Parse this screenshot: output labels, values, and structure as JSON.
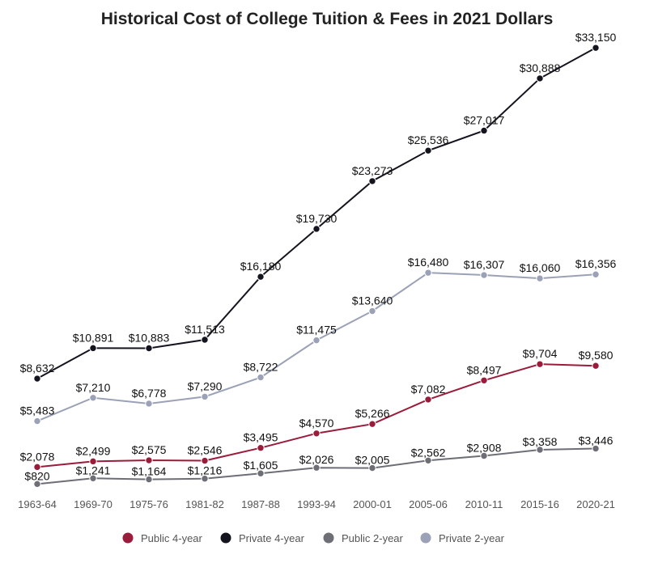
{
  "chart_data": {
    "type": "line",
    "title": "Historical Cost of College Tuition & Fees in 2021 Dollars",
    "xlabel": "",
    "ylabel": "",
    "ylim": [
      0,
      34000
    ],
    "grid": false,
    "legend_position": "bottom",
    "categories": [
      "1963-64",
      "1969-70",
      "1975-76",
      "1981-82",
      "1987-88",
      "1993-94",
      "2000-01",
      "2005-06",
      "2010-11",
      "2015-16",
      "2020-21"
    ],
    "series": [
      {
        "name": "Public 4-year",
        "color": "#9b1b3b",
        "values": [
          2078,
          2499,
          2575,
          2546,
          3495,
          4570,
          5266,
          7082,
          8497,
          9704,
          9580
        ],
        "labels": [
          "$2,078",
          "$2,499",
          "$2,575",
          "$2,546",
          "$3,495",
          "$4,570",
          "$5,266",
          "$7,082",
          "$8,497",
          "$9,704",
          "$9,580"
        ]
      },
      {
        "name": "Private 4-year",
        "color": "#14141f",
        "values": [
          8632,
          10891,
          10883,
          11513,
          16180,
          19730,
          23273,
          25536,
          27017,
          30888,
          33150
        ],
        "labels": [
          "$8,632",
          "$10,891",
          "$10,883",
          "$11,513",
          "$16,180",
          "$19,730",
          "$23,273",
          "$25,536",
          "$27,017",
          "$30,888",
          "$33,150"
        ]
      },
      {
        "name": "Public 2-year",
        "color": "#6d6e76",
        "values": [
          820,
          1241,
          1164,
          1216,
          1605,
          2026,
          2005,
          2562,
          2908,
          3358,
          3446
        ],
        "labels": [
          "$820",
          "$1,241",
          "$1,164",
          "$1,216",
          "$1,605",
          "$2,026",
          "$2,005",
          "$2,562",
          "$2,908",
          "$3,358",
          "$3,446"
        ]
      },
      {
        "name": "Private 2-year",
        "color": "#9ba1b6",
        "values": [
          5483,
          7210,
          6778,
          7290,
          8722,
          11475,
          13640,
          16480,
          16307,
          16060,
          16356
        ],
        "labels": [
          "$5,483",
          "$7,210",
          "$6,778",
          "$7,290",
          "$8,722",
          "$11,475",
          "$13,640",
          "$16,480",
          "$16,307",
          "$16,060",
          "$16,356"
        ]
      }
    ]
  }
}
